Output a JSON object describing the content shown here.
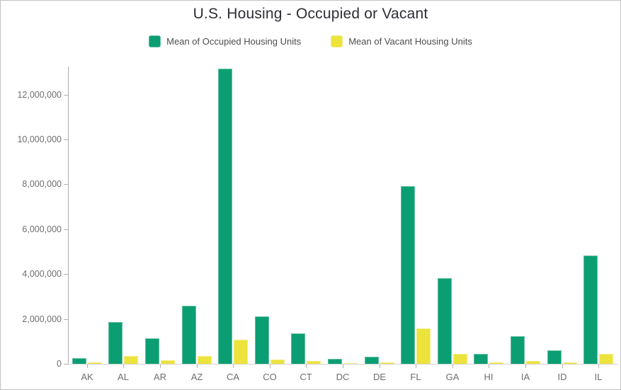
{
  "chart_data": {
    "type": "bar",
    "title": "U.S. Housing - Occupied or Vacant",
    "xlabel": "",
    "ylabel": "",
    "grid": "off",
    "legend_position": "top",
    "categories": [
      "AK",
      "AL",
      "AR",
      "AZ",
      "CA",
      "CO",
      "CT",
      "DC",
      "DE",
      "FL",
      "GA",
      "HI",
      "IA",
      "ID",
      "IL"
    ],
    "series": [
      {
        "name": "Mean of Occupied Housing Units",
        "key": "occupied",
        "values": [
          250000,
          1850000,
          1130000,
          2600000,
          13150000,
          2100000,
          1350000,
          235000,
          320000,
          7930000,
          3820000,
          430000,
          1220000,
          610000,
          4830000
        ]
      },
      {
        "name": "Mean of Vacant Housing Units",
        "key": "vacant",
        "values": [
          55000,
          350000,
          150000,
          340000,
          1060000,
          175000,
          115000,
          30000,
          65000,
          1570000,
          450000,
          75000,
          120000,
          70000,
          450000
        ]
      }
    ],
    "ylim": [
      0,
      13250000
    ],
    "y_ticks": [
      0,
      2000000,
      4000000,
      6000000,
      8000000,
      10000000,
      12000000
    ],
    "y_tick_labels": [
      "0",
      "2,000,000",
      "4,000,000",
      "6,000,000",
      "8,000,000",
      "10,000,000",
      "12,000,000"
    ]
  },
  "colors": {
    "occupied": "#0b9e73",
    "occupied_border": "#63bfa0",
    "vacant": "#ece33c",
    "vacant_border": "#f3eb80",
    "axis_line": "#aeaeae",
    "baseline": "#d2d2d2",
    "tick": "#aeaeae",
    "title_text": "#2d2d35",
    "legend_text": "#4d4d4d",
    "axis_text": "#6e6e6e"
  }
}
